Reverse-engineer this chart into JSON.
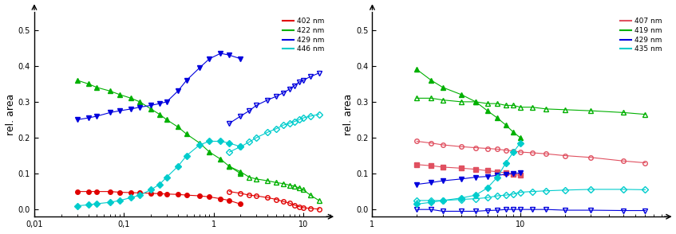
{
  "left": {
    "title": "",
    "xlabel": "",
    "ylabel": "rel. area",
    "xlim": [
      0.01,
      20
    ],
    "ylim": [
      -0.02,
      0.55
    ],
    "yticks": [
      0.0,
      0.1,
      0.2,
      0.3,
      0.4,
      0.5
    ],
    "xtick_labels": [
      "0,01",
      "0,1",
      "1",
      "10"
    ],
    "xtick_vals": [
      0.01,
      0.1,
      1,
      10
    ],
    "legend_labels": [
      "402 nm",
      "422 nm",
      "429 nm",
      "446 nm"
    ],
    "legend_colors": [
      "#e00000",
      "#00b000",
      "#0000e0",
      "#00cccc"
    ],
    "series": [
      {
        "label": "402 nm solid",
        "color": "#e00000",
        "marker": "o",
        "filled": true,
        "x": [
          0.03,
          0.04,
          0.05,
          0.07,
          0.09,
          0.12,
          0.15,
          0.2,
          0.25,
          0.3,
          0.4,
          0.5,
          0.7,
          0.9,
          1.2,
          1.5,
          2.0
        ],
        "y": [
          0.05,
          0.05,
          0.05,
          0.05,
          0.048,
          0.047,
          0.046,
          0.045,
          0.044,
          0.043,
          0.042,
          0.04,
          0.038,
          0.035,
          0.03,
          0.025,
          0.015
        ]
      },
      {
        "label": "402 nm open",
        "color": "#e00000",
        "marker": "o",
        "filled": false,
        "x": [
          1.5,
          2.0,
          2.5,
          3.0,
          4.0,
          5.0,
          6.0,
          7.0,
          8.0,
          9.0,
          10.0,
          12.0,
          15.0
        ],
        "y": [
          0.05,
          0.045,
          0.04,
          0.038,
          0.033,
          0.028,
          0.022,
          0.018,
          0.012,
          0.008,
          0.005,
          0.003,
          0.001
        ]
      },
      {
        "label": "422 nm solid",
        "color": "#00b000",
        "marker": "^",
        "filled": true,
        "x": [
          0.03,
          0.04,
          0.05,
          0.07,
          0.09,
          0.12,
          0.15,
          0.2,
          0.25,
          0.3,
          0.4,
          0.5,
          0.7,
          0.9,
          1.2,
          1.5,
          2.0
        ],
        "y": [
          0.36,
          0.35,
          0.34,
          0.33,
          0.32,
          0.31,
          0.3,
          0.28,
          0.265,
          0.25,
          0.23,
          0.21,
          0.185,
          0.16,
          0.14,
          0.12,
          0.1
        ]
      },
      {
        "label": "422 nm open",
        "color": "#00b000",
        "marker": "^",
        "filled": false,
        "x": [
          1.5,
          2.0,
          2.5,
          3.0,
          4.0,
          5.0,
          6.0,
          7.0,
          8.0,
          9.0,
          10.0,
          12.0,
          15.0
        ],
        "y": [
          0.12,
          0.105,
          0.09,
          0.085,
          0.08,
          0.075,
          0.072,
          0.068,
          0.065,
          0.06,
          0.055,
          0.04,
          0.025
        ]
      },
      {
        "label": "429 nm solid",
        "color": "#0000dd",
        "marker": "v",
        "filled": true,
        "x": [
          0.03,
          0.04,
          0.05,
          0.07,
          0.09,
          0.12,
          0.15,
          0.2,
          0.25,
          0.3,
          0.4,
          0.5,
          0.7,
          0.9,
          1.2,
          1.5,
          2.0
        ],
        "y": [
          0.25,
          0.255,
          0.26,
          0.27,
          0.275,
          0.28,
          0.285,
          0.29,
          0.295,
          0.3,
          0.33,
          0.36,
          0.395,
          0.42,
          0.435,
          0.43,
          0.42
        ]
      },
      {
        "label": "429 nm open",
        "color": "#0000dd",
        "marker": "v",
        "filled": false,
        "x": [
          1.5,
          2.0,
          2.5,
          3.0,
          4.0,
          5.0,
          6.0,
          7.0,
          8.0,
          9.0,
          10.0,
          12.0,
          15.0
        ],
        "y": [
          0.24,
          0.26,
          0.275,
          0.29,
          0.305,
          0.315,
          0.325,
          0.335,
          0.345,
          0.355,
          0.36,
          0.37,
          0.38
        ]
      },
      {
        "label": "446 nm solid",
        "color": "#00cccc",
        "marker": "D",
        "filled": true,
        "x": [
          0.03,
          0.04,
          0.05,
          0.07,
          0.09,
          0.12,
          0.15,
          0.2,
          0.25,
          0.3,
          0.4,
          0.5,
          0.7,
          0.9,
          1.2,
          1.5,
          2.0
        ],
        "y": [
          0.01,
          0.013,
          0.016,
          0.02,
          0.025,
          0.033,
          0.04,
          0.055,
          0.07,
          0.09,
          0.12,
          0.15,
          0.18,
          0.19,
          0.19,
          0.185,
          0.175
        ]
      },
      {
        "label": "446 nm open",
        "color": "#00cccc",
        "marker": "D",
        "filled": false,
        "x": [
          1.5,
          2.0,
          2.5,
          3.0,
          4.0,
          5.0,
          6.0,
          7.0,
          8.0,
          9.0,
          10.0,
          12.0,
          15.0
        ],
        "y": [
          0.16,
          0.175,
          0.188,
          0.2,
          0.215,
          0.225,
          0.235,
          0.24,
          0.245,
          0.25,
          0.255,
          0.26,
          0.265
        ]
      }
    ]
  },
  "right": {
    "title": "",
    "xlabel": "",
    "ylabel": "rel. area",
    "xlim": [
      1,
      100
    ],
    "ylim": [
      -0.02,
      0.55
    ],
    "yticks": [
      0.0,
      0.1,
      0.2,
      0.3,
      0.4,
      0.5
    ],
    "xtick_labels": [
      "1",
      "10"
    ],
    "xtick_vals": [
      1,
      10
    ],
    "legend_labels": [
      "407 nm",
      "419 nm",
      "429 nm",
      "435 nm"
    ],
    "legend_colors": [
      "#e05060",
      "#00b000",
      "#0000dd",
      "#00cccc"
    ],
    "series": [
      {
        "label": "407 nm solid",
        "color": "#e05060",
        "marker": "s",
        "filled": true,
        "x": [
          2.0,
          2.5,
          3.0,
          4.0,
          5.0,
          6.0,
          7.0,
          8.0,
          9.0,
          10.0
        ],
        "y": [
          0.125,
          0.122,
          0.118,
          0.115,
          0.112,
          0.108,
          0.105,
          0.102,
          0.098,
          0.095
        ]
      },
      {
        "label": "407 nm open",
        "color": "#e05060",
        "marker": "o",
        "filled": false,
        "x": [
          2.0,
          2.5,
          3.0,
          4.0,
          5.0,
          6.0,
          7.0,
          8.0,
          9.0,
          10.0,
          12.0,
          15.0,
          20.0,
          30.0,
          50.0,
          70.0
        ],
        "y": [
          0.19,
          0.185,
          0.18,
          0.175,
          0.172,
          0.17,
          0.168,
          0.165,
          0.163,
          0.16,
          0.158,
          0.155,
          0.15,
          0.145,
          0.135,
          0.13
        ]
      },
      {
        "label": "419 nm solid",
        "color": "#00b000",
        "marker": "^",
        "filled": true,
        "x": [
          2.0,
          2.5,
          3.0,
          4.0,
          5.0,
          6.0,
          7.0,
          8.0,
          9.0,
          10.0
        ],
        "y": [
          0.39,
          0.36,
          0.34,
          0.32,
          0.3,
          0.275,
          0.255,
          0.235,
          0.215,
          0.2
        ]
      },
      {
        "label": "419 nm open",
        "color": "#00b000",
        "marker": "^",
        "filled": false,
        "x": [
          2.0,
          2.5,
          3.0,
          4.0,
          5.0,
          6.0,
          7.0,
          8.0,
          9.0,
          10.0,
          12.0,
          15.0,
          20.0,
          30.0,
          50.0,
          70.0
        ],
        "y": [
          0.31,
          0.31,
          0.305,
          0.3,
          0.3,
          0.295,
          0.295,
          0.29,
          0.29,
          0.285,
          0.285,
          0.28,
          0.278,
          0.275,
          0.27,
          0.265
        ]
      },
      {
        "label": "429 nm solid",
        "color": "#0000dd",
        "marker": "v",
        "filled": true,
        "x": [
          2.0,
          2.5,
          3.0,
          4.0,
          5.0,
          6.0,
          7.0,
          8.0,
          9.0,
          10.0
        ],
        "y": [
          0.07,
          0.075,
          0.08,
          0.085,
          0.09,
          0.092,
          0.095,
          0.098,
          0.1,
          0.102
        ]
      },
      {
        "label": "429 nm open",
        "color": "#0000dd",
        "marker": "v",
        "filled": false,
        "x": [
          2.0,
          2.5,
          3.0,
          4.0,
          5.0,
          6.0,
          7.0,
          8.0,
          9.0,
          10.0,
          12.0,
          15.0,
          20.0,
          30.0,
          50.0,
          70.0
        ],
        "y": [
          0.0,
          0.0,
          -0.005,
          -0.005,
          -0.005,
          -0.003,
          -0.002,
          0.0,
          0.0,
          0.0,
          0.0,
          0.0,
          -0.002,
          -0.002,
          -0.003,
          -0.003
        ]
      },
      {
        "label": "435 nm solid",
        "color": "#00cccc",
        "marker": "D",
        "filled": true,
        "x": [
          2.0,
          2.5,
          3.0,
          4.0,
          5.0,
          6.0,
          7.0,
          8.0,
          9.0,
          10.0
        ],
        "y": [
          0.015,
          0.02,
          0.025,
          0.032,
          0.04,
          0.06,
          0.09,
          0.13,
          0.16,
          0.185
        ]
      },
      {
        "label": "435 nm open",
        "color": "#00cccc",
        "marker": "D",
        "filled": false,
        "x": [
          2.0,
          2.5,
          3.0,
          4.0,
          5.0,
          6.0,
          7.0,
          8.0,
          9.0,
          10.0,
          12.0,
          15.0,
          20.0,
          30.0,
          50.0,
          70.0
        ],
        "y": [
          0.025,
          0.025,
          0.025,
          0.028,
          0.03,
          0.033,
          0.038,
          0.04,
          0.043,
          0.048,
          0.05,
          0.052,
          0.054,
          0.056,
          0.056,
          0.055
        ]
      }
    ]
  }
}
